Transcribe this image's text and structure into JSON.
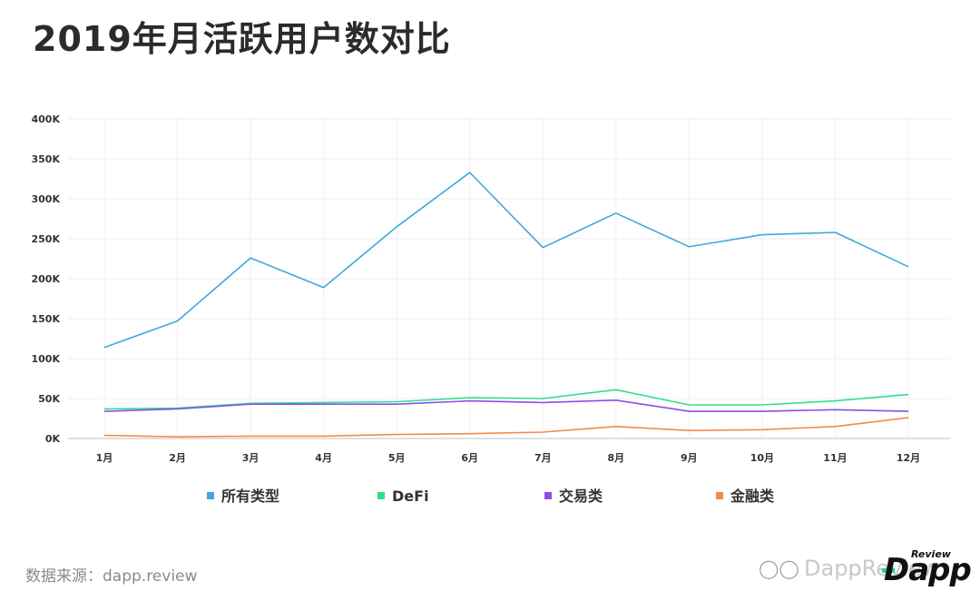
{
  "title": "2019年月活跃用户数对比",
  "source": "数据来源：dapp.review",
  "brand": {
    "wechat_icon": "wechat-icon",
    "handle": "DappReview",
    "logo_main": "Dapp",
    "logo_sub": "Review"
  },
  "chart_data": {
    "type": "line",
    "x": [
      "1月",
      "2月",
      "3月",
      "4月",
      "5月",
      "6月",
      "7月",
      "8月",
      "9月",
      "10月",
      "11月",
      "12月"
    ],
    "y_ticks": [
      "0K",
      "50K",
      "100K",
      "150K",
      "200K",
      "250K",
      "300K",
      "350K",
      "400K"
    ],
    "ylim": [
      0,
      400000
    ],
    "grid": true,
    "legend_position": "bottom",
    "series": [
      {
        "name": "所有类型",
        "color": "#3ea8dc",
        "values": [
          114000,
          147000,
          226000,
          189000,
          265000,
          333000,
          239000,
          282000,
          240000,
          255000,
          258000,
          215000
        ]
      },
      {
        "name": "DeFi",
        "color": "#2ee08a",
        "values": [
          37000,
          38000,
          44000,
          45000,
          46000,
          51000,
          50000,
          61000,
          42000,
          42000,
          47000,
          55000
        ]
      },
      {
        "name": "交易类",
        "color": "#8a4fe8",
        "values": [
          34000,
          37000,
          43000,
          43000,
          43000,
          47000,
          45000,
          48000,
          34000,
          34000,
          36000,
          34000
        ]
      },
      {
        "name": "金融类",
        "color": "#f28a4a",
        "values": [
          4000,
          2000,
          3000,
          3000,
          5000,
          6000,
          8000,
          15000,
          10000,
          11000,
          15000,
          26000
        ]
      }
    ]
  }
}
